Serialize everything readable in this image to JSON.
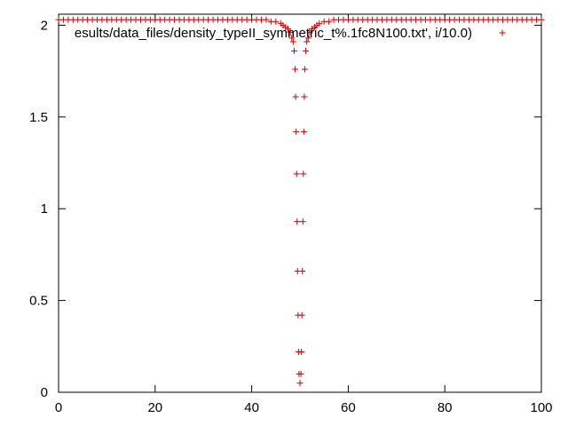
{
  "chart_data": {
    "type": "scatter",
    "xlim": [
      0,
      100
    ],
    "ylim": [
      0,
      2.06
    ],
    "x_ticks": [
      "0",
      "20",
      "40",
      "60",
      "80",
      "100"
    ],
    "y_ticks": [
      "0",
      "0.5",
      "1",
      "1.5",
      "2"
    ],
    "grid": false,
    "legend_position": "top-right",
    "marker": "+",
    "series": [
      {
        "name": "esults/data_files/density_typeII_symmetric_t%.1fc8N100.txt', i/10.0)",
        "color": "#cc0000",
        "points": [
          [
            0,
            2.03
          ],
          [
            1,
            2.03
          ],
          [
            2,
            2.03
          ],
          [
            3,
            2.03
          ],
          [
            4,
            2.03
          ],
          [
            5,
            2.03
          ],
          [
            6,
            2.03
          ],
          [
            7,
            2.03
          ],
          [
            8,
            2.03
          ],
          [
            9,
            2.03
          ],
          [
            10,
            2.03
          ],
          [
            11,
            2.03
          ],
          [
            12,
            2.03
          ],
          [
            13,
            2.03
          ],
          [
            14,
            2.03
          ],
          [
            15,
            2.03
          ],
          [
            16,
            2.03
          ],
          [
            17,
            2.03
          ],
          [
            18,
            2.03
          ],
          [
            19,
            2.03
          ],
          [
            20,
            2.03
          ],
          [
            21,
            2.03
          ],
          [
            22,
            2.03
          ],
          [
            23,
            2.03
          ],
          [
            24,
            2.03
          ],
          [
            25,
            2.03
          ],
          [
            26,
            2.03
          ],
          [
            27,
            2.03
          ],
          [
            28,
            2.03
          ],
          [
            29,
            2.03
          ],
          [
            30,
            2.03
          ],
          [
            31,
            2.03
          ],
          [
            32,
            2.03
          ],
          [
            33,
            2.03
          ],
          [
            34,
            2.03
          ],
          [
            35,
            2.03
          ],
          [
            36,
            2.03
          ],
          [
            37,
            2.03
          ],
          [
            38,
            2.03
          ],
          [
            39,
            2.03
          ],
          [
            40,
            2.03
          ],
          [
            41,
            2.03
          ],
          [
            42,
            2.03
          ],
          [
            43,
            2.03
          ],
          [
            44,
            2.02
          ],
          [
            45,
            2.02
          ],
          [
            46,
            2.01
          ],
          [
            46.5,
            2.0
          ],
          [
            47,
            1.99
          ],
          [
            47.5,
            1.98
          ],
          [
            48,
            1.96
          ],
          [
            48.3,
            1.93
          ],
          [
            48.6,
            1.91
          ],
          [
            48.8,
            1.86
          ],
          [
            49.0,
            1.76
          ],
          [
            49.1,
            1.61
          ],
          [
            49.2,
            1.42
          ],
          [
            49.3,
            1.19
          ],
          [
            49.4,
            0.93
          ],
          [
            49.5,
            0.66
          ],
          [
            49.6,
            0.42
          ],
          [
            49.7,
            0.22
          ],
          [
            49.8,
            0.1
          ],
          [
            50.0,
            0.05
          ],
          [
            50.2,
            0.1
          ],
          [
            50.3,
            0.22
          ],
          [
            50.4,
            0.42
          ],
          [
            50.5,
            0.66
          ],
          [
            50.6,
            0.93
          ],
          [
            50.7,
            1.19
          ],
          [
            50.8,
            1.42
          ],
          [
            50.9,
            1.61
          ],
          [
            51.0,
            1.76
          ],
          [
            51.2,
            1.86
          ],
          [
            51.4,
            1.91
          ],
          [
            51.7,
            1.93
          ],
          [
            52,
            1.96
          ],
          [
            52.5,
            1.98
          ],
          [
            53,
            1.99
          ],
          [
            53.5,
            2.0
          ],
          [
            54,
            2.01
          ],
          [
            55,
            2.02
          ],
          [
            56,
            2.02
          ],
          [
            57,
            2.03
          ],
          [
            58,
            2.03
          ],
          [
            59,
            2.03
          ],
          [
            60,
            2.03
          ],
          [
            61,
            2.03
          ],
          [
            62,
            2.03
          ],
          [
            63,
            2.03
          ],
          [
            64,
            2.03
          ],
          [
            65,
            2.03
          ],
          [
            66,
            2.03
          ],
          [
            67,
            2.03
          ],
          [
            68,
            2.03
          ],
          [
            69,
            2.03
          ],
          [
            70,
            2.03
          ],
          [
            71,
            2.03
          ],
          [
            72,
            2.03
          ],
          [
            73,
            2.03
          ],
          [
            74,
            2.03
          ],
          [
            75,
            2.03
          ],
          [
            76,
            2.03
          ],
          [
            77,
            2.03
          ],
          [
            78,
            2.03
          ],
          [
            79,
            2.03
          ],
          [
            80,
            2.03
          ],
          [
            81,
            2.03
          ],
          [
            82,
            2.03
          ],
          [
            83,
            2.03
          ],
          [
            84,
            2.03
          ],
          [
            85,
            2.03
          ],
          [
            86,
            2.03
          ],
          [
            87,
            2.03
          ],
          [
            88,
            2.03
          ],
          [
            89,
            2.03
          ],
          [
            90,
            2.03
          ],
          [
            91,
            2.03
          ],
          [
            92,
            2.03
          ],
          [
            93,
            2.03
          ],
          [
            94,
            2.03
          ],
          [
            95,
            2.03
          ],
          [
            96,
            2.03
          ],
          [
            97,
            2.03
          ],
          [
            98,
            2.03
          ],
          [
            99,
            2.03
          ],
          [
            100,
            2.03
          ]
        ]
      }
    ]
  }
}
